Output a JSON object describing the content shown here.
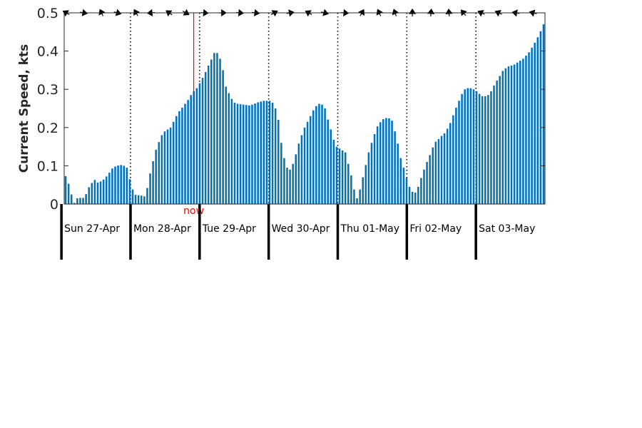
{
  "chart_data": {
    "type": "bar",
    "ylabel": "Current Speed, kts",
    "ylim": [
      0,
      0.5
    ],
    "yticks": [
      "0",
      "0.1",
      "0.2",
      "0.3",
      "0.4",
      "0.5"
    ],
    "grid": false,
    "bar_color": "#0072bd",
    "now_color": "#ff0000",
    "now_label": "now",
    "now_x": 1.915,
    "x_range": [
      0.04,
      7.0
    ],
    "day_labels": [
      "Sun 27-Apr",
      "Mon 28-Apr",
      "Tue 29-Apr",
      "Wed 30-Apr",
      "Thu 01-May",
      "Fri 02-May",
      "Sat 03-May"
    ],
    "day_boundaries": [
      0,
      1,
      2,
      3,
      4,
      5,
      6
    ],
    "series": [
      {
        "values": [
          0.073,
          0.053,
          0.025,
          0.003,
          0.015,
          0.016,
          0.016,
          0.026,
          0.044,
          0.055,
          0.063,
          0.056,
          0.059,
          0.064,
          0.072,
          0.082,
          0.093,
          0.098,
          0.101,
          0.102,
          0.1,
          0.095,
          0.065,
          0.038,
          0.024,
          0.023,
          0.022,
          0.02,
          0.042,
          0.08,
          0.112,
          0.142,
          0.162,
          0.18,
          0.19,
          0.195,
          0.2,
          0.215,
          0.23,
          0.243,
          0.252,
          0.262,
          0.272,
          0.285,
          0.295,
          0.303,
          0.316,
          0.33,
          0.345,
          0.362,
          0.378,
          0.395,
          0.395,
          0.38,
          0.35,
          0.307,
          0.29,
          0.275,
          0.265,
          0.262,
          0.261,
          0.26,
          0.259,
          0.258,
          0.26,
          0.263,
          0.266,
          0.268,
          0.27,
          0.27,
          0.27,
          0.265,
          0.25,
          0.22,
          0.16,
          0.12,
          0.095,
          0.09,
          0.105,
          0.13,
          0.158,
          0.18,
          0.2,
          0.215,
          0.23,
          0.245,
          0.256,
          0.262,
          0.26,
          0.25,
          0.221,
          0.195,
          0.168,
          0.15,
          0.145,
          0.14,
          0.135,
          0.105,
          0.075,
          0.038,
          0.015,
          0.038,
          0.07,
          0.102,
          0.135,
          0.16,
          0.183,
          0.203,
          0.214,
          0.222,
          0.225,
          0.224,
          0.218,
          0.19,
          0.158,
          0.12,
          0.095,
          0.068,
          0.045,
          0.032,
          0.03,
          0.045,
          0.068,
          0.09,
          0.11,
          0.128,
          0.148,
          0.163,
          0.17,
          0.178,
          0.185,
          0.197,
          0.212,
          0.232,
          0.252,
          0.27,
          0.288,
          0.3,
          0.303,
          0.303,
          0.3,
          0.295,
          0.288,
          0.282,
          0.282,
          0.285,
          0.295,
          0.31,
          0.323,
          0.335,
          0.348,
          0.355,
          0.36,
          0.362,
          0.365,
          0.37,
          0.375,
          0.38,
          0.388,
          0.397,
          0.409,
          0.422,
          0.436,
          0.452,
          0.47
        ]
      }
    ],
    "direction_arrows": [
      {
        "x": 0.07,
        "angle": 210
      },
      {
        "x": 0.32,
        "angle": 10
      },
      {
        "x": 0.58,
        "angle": 245
      },
      {
        "x": 0.81,
        "angle": 15
      },
      {
        "x": 1.08,
        "angle": 240
      },
      {
        "x": 1.3,
        "angle": 175
      },
      {
        "x": 1.56,
        "angle": 215
      },
      {
        "x": 1.8,
        "angle": 30
      },
      {
        "x": 2.07,
        "angle": 5
      },
      {
        "x": 2.33,
        "angle": 0
      },
      {
        "x": 2.58,
        "angle": 5
      },
      {
        "x": 2.81,
        "angle": 8
      },
      {
        "x": 3.08,
        "angle": 330
      },
      {
        "x": 3.31,
        "angle": 350
      },
      {
        "x": 3.58,
        "angle": 210
      },
      {
        "x": 3.81,
        "angle": 15
      },
      {
        "x": 4.1,
        "angle": 5
      },
      {
        "x": 4.35,
        "angle": 300
      },
      {
        "x": 4.6,
        "angle": 245
      },
      {
        "x": 4.83,
        "angle": 250
      },
      {
        "x": 5.08,
        "angle": 270
      },
      {
        "x": 5.35,
        "angle": 275
      },
      {
        "x": 5.61,
        "angle": 265
      },
      {
        "x": 5.82,
        "angle": 230
      },
      {
        "x": 6.08,
        "angle": 205
      },
      {
        "x": 6.33,
        "angle": 205
      },
      {
        "x": 6.58,
        "angle": 190
      },
      {
        "x": 6.83,
        "angle": 195
      }
    ]
  }
}
